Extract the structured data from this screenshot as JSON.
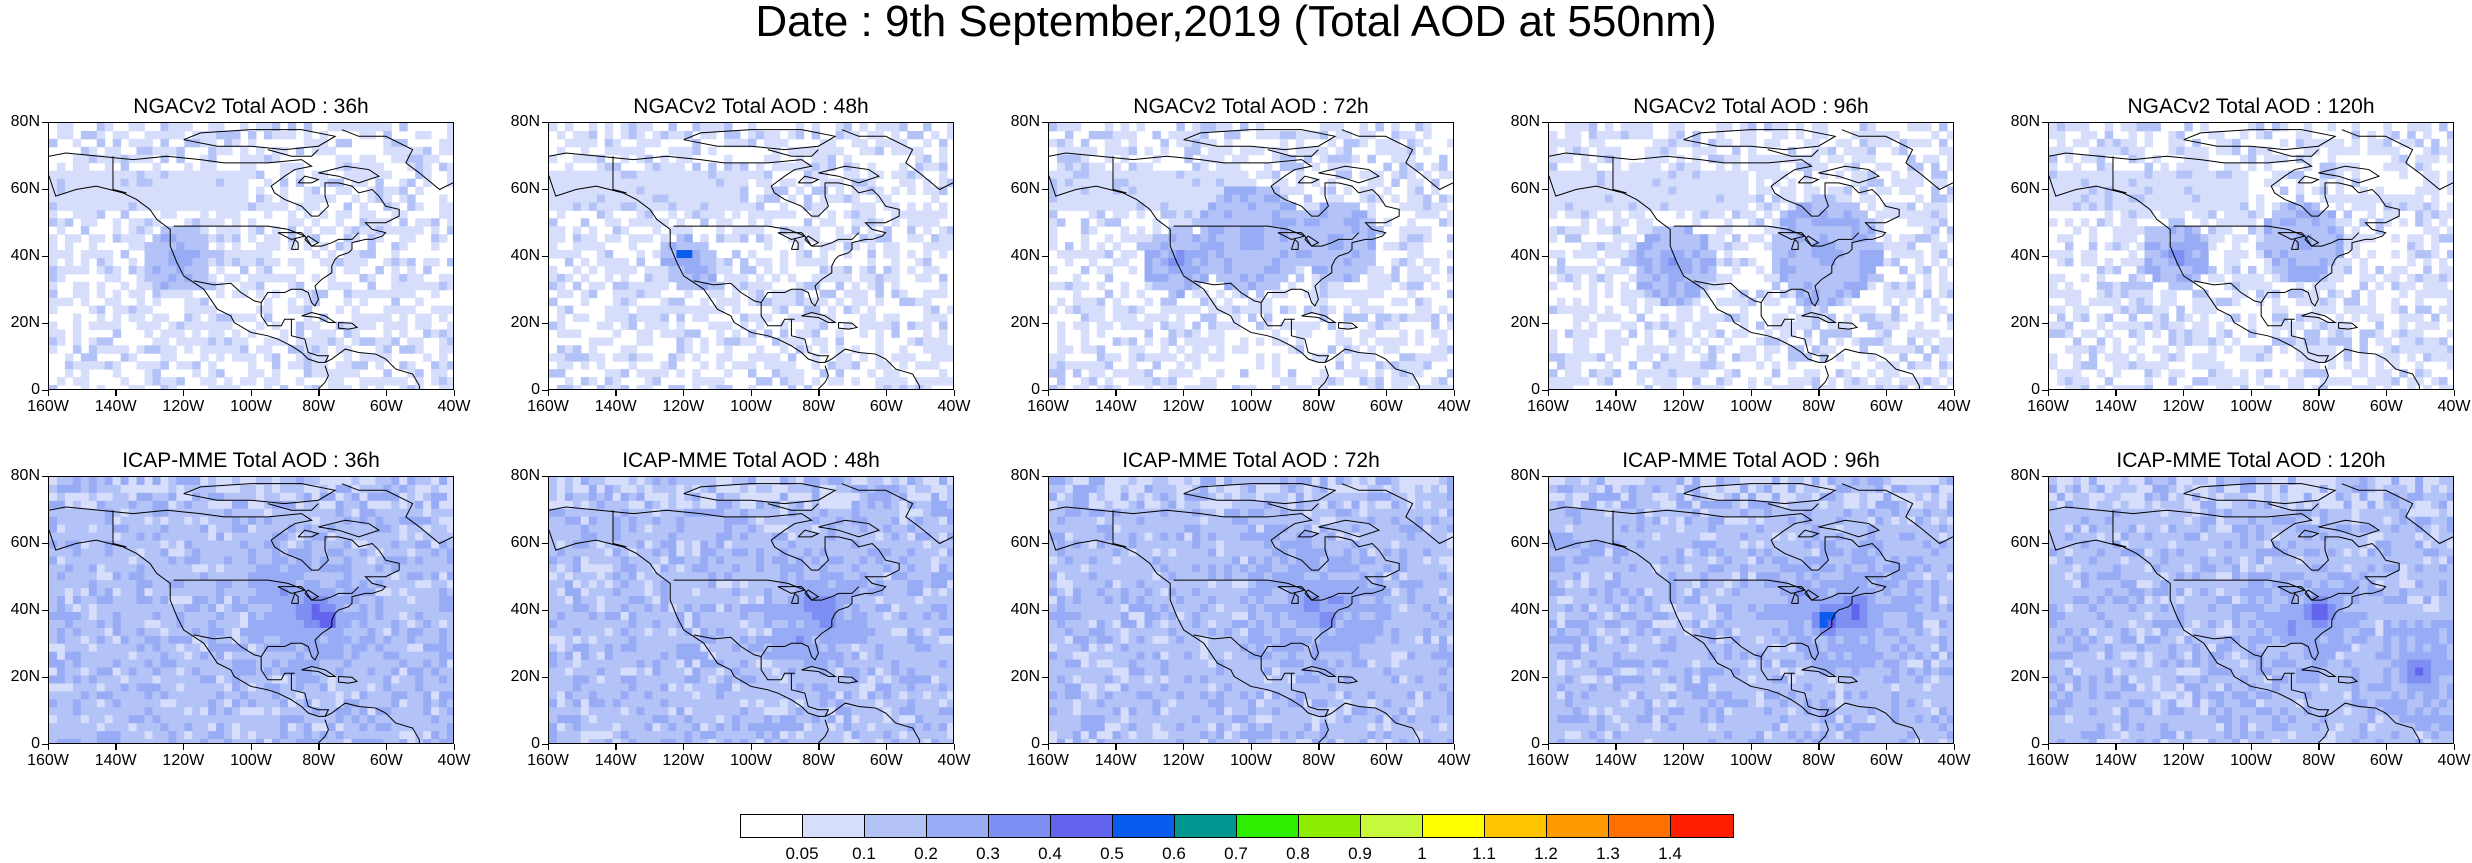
{
  "title": "Date : 9th September,2019 (Total AOD at 550nm)",
  "panels": [
    {
      "title": "NGACv2 Total AOD : 36h",
      "model": "NGACv2",
      "lead": "36h"
    },
    {
      "title": "NGACv2 Total AOD : 48h",
      "model": "NGACv2",
      "lead": "48h"
    },
    {
      "title": "NGACv2 Total AOD : 72h",
      "model": "NGACv2",
      "lead": "72h"
    },
    {
      "title": "NGACv2 Total AOD : 96h",
      "model": "NGACv2",
      "lead": "96h"
    },
    {
      "title": "NGACv2 Total AOD : 120h",
      "model": "NGACv2",
      "lead": "120h"
    },
    {
      "title": "ICAP-MME Total AOD : 36h",
      "model": "ICAP-MME",
      "lead": "36h"
    },
    {
      "title": "ICAP-MME Total AOD : 48h",
      "model": "ICAP-MME",
      "lead": "48h"
    },
    {
      "title": "ICAP-MME Total AOD : 72h",
      "model": "ICAP-MME",
      "lead": "72h"
    },
    {
      "title": "ICAP-MME Total AOD : 96h",
      "model": "ICAP-MME",
      "lead": "96h"
    },
    {
      "title": "ICAP-MME Total AOD : 120h",
      "model": "ICAP-MME",
      "lead": "120h"
    }
  ],
  "y_ticks": [
    "80N",
    "60N",
    "40N",
    "20N",
    "0"
  ],
  "x_ticks": [
    "160W",
    "140W",
    "120W",
    "100W",
    "80W",
    "60W",
    "40W"
  ],
  "colorbar": {
    "labels": [
      "0.05",
      "0.1",
      "0.2",
      "0.3",
      "0.4",
      "0.5",
      "0.6",
      "0.7",
      "0.8",
      "0.9",
      "1",
      "1.1",
      "1.2",
      "1.3",
      "1.4"
    ],
    "colors": [
      "#ffffff",
      "#d6defb",
      "#b4c3f7",
      "#98acf6",
      "#7d8ff2",
      "#6264ee",
      "#0a5cee",
      "#009690",
      "#2eee00",
      "#8cee00",
      "#c8f83c",
      "#ffff00",
      "#ffc400",
      "#ff9a00",
      "#ff7000",
      "#ff1e00"
    ]
  }
}
